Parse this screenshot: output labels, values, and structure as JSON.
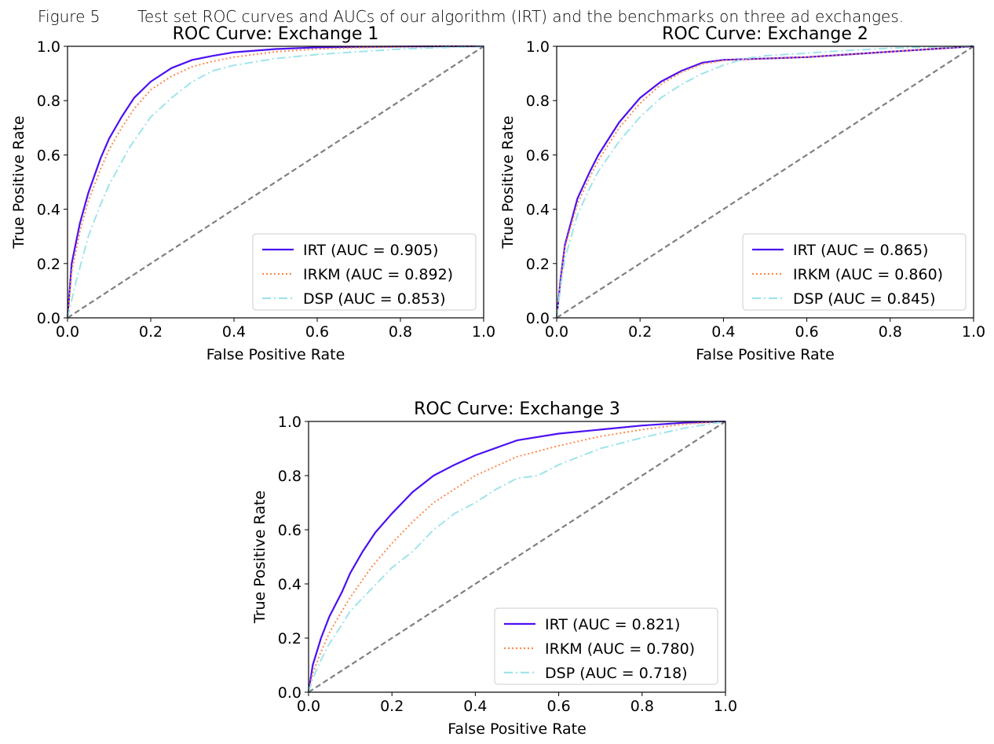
{
  "caption": {
    "label": "Figure 5",
    "text": "Test set ROC curves and AUCs of our algorithm (IRT) and the benchmarks on three ad exchanges."
  },
  "styles": {
    "irt_color": "#4b10f2",
    "irkm_color": "#ff8a4d",
    "dsp_color": "#9fe4ea",
    "diagonal_color": "#808080"
  },
  "chart_data": [
    {
      "type": "line",
      "title": "ROC Curve: Exchange 1",
      "xlabel": "False Positive Rate",
      "ylabel": "True Positive Rate",
      "xlim": [
        0,
        1
      ],
      "ylim": [
        0,
        1
      ],
      "xticks": [
        "0.0",
        "0.2",
        "0.4",
        "0.6",
        "0.8",
        "1.0"
      ],
      "yticks": [
        "0.0",
        "0.2",
        "0.4",
        "0.6",
        "0.8",
        "1.0"
      ],
      "legend_position": "lower-right",
      "grid": false,
      "series": [
        {
          "name": "IRT (AUC = 0.905)",
          "style": "solid",
          "x": [
            0,
            0.01,
            0.03,
            0.05,
            0.08,
            0.1,
            0.13,
            0.16,
            0.2,
            0.25,
            0.3,
            0.35,
            0.4,
            0.5,
            0.6,
            0.7,
            0.8,
            0.9,
            1.0
          ],
          "y": [
            0,
            0.2,
            0.35,
            0.46,
            0.59,
            0.66,
            0.74,
            0.81,
            0.87,
            0.92,
            0.95,
            0.965,
            0.978,
            0.99,
            0.996,
            0.998,
            0.999,
            1.0,
            1.0
          ]
        },
        {
          "name": "IRKM (AUC = 0.892)",
          "style": "dotted",
          "x": [
            0,
            0.01,
            0.03,
            0.05,
            0.08,
            0.1,
            0.13,
            0.16,
            0.2,
            0.25,
            0.3,
            0.35,
            0.4,
            0.5,
            0.6,
            0.7,
            0.8,
            0.9,
            1.0
          ],
          "y": [
            0,
            0.17,
            0.32,
            0.43,
            0.55,
            0.62,
            0.7,
            0.77,
            0.84,
            0.89,
            0.925,
            0.945,
            0.96,
            0.98,
            0.99,
            0.995,
            0.998,
            1.0,
            1.0
          ]
        },
        {
          "name": "DSP (AUC = 0.853)",
          "style": "dashdot",
          "x": [
            0,
            0.02,
            0.05,
            0.08,
            0.1,
            0.15,
            0.2,
            0.25,
            0.3,
            0.35,
            0.4,
            0.5,
            0.6,
            0.7,
            0.8,
            0.9,
            1.0
          ],
          "y": [
            0,
            0.13,
            0.3,
            0.42,
            0.49,
            0.63,
            0.74,
            0.81,
            0.87,
            0.91,
            0.93,
            0.955,
            0.97,
            0.98,
            0.99,
            0.995,
            1.0
          ]
        }
      ]
    },
    {
      "type": "line",
      "title": "ROC Curve: Exchange 2",
      "xlabel": "False Positive Rate",
      "ylabel": "True Positive Rate",
      "xlim": [
        0,
        1
      ],
      "ylim": [
        0,
        1
      ],
      "xticks": [
        "0.0",
        "0.2",
        "0.4",
        "0.6",
        "0.8",
        "1.0"
      ],
      "yticks": [
        "0.0",
        "0.2",
        "0.4",
        "0.6",
        "0.8",
        "1.0"
      ],
      "legend_position": "lower-right",
      "grid": false,
      "series": [
        {
          "name": "IRT (AUC = 0.865)",
          "style": "solid",
          "x": [
            0,
            0.01,
            0.02,
            0.05,
            0.08,
            0.1,
            0.15,
            0.2,
            0.25,
            0.3,
            0.35,
            0.4,
            0.5,
            0.6,
            0.7,
            0.8,
            0.9,
            1.0
          ],
          "y": [
            0,
            0.15,
            0.27,
            0.44,
            0.54,
            0.6,
            0.72,
            0.81,
            0.87,
            0.91,
            0.94,
            0.95,
            0.955,
            0.96,
            0.97,
            0.98,
            0.99,
            1.0
          ]
        },
        {
          "name": "IRKM (AUC = 0.860)",
          "style": "dotted",
          "x": [
            0,
            0.01,
            0.02,
            0.05,
            0.08,
            0.1,
            0.15,
            0.2,
            0.25,
            0.3,
            0.35,
            0.4,
            0.5,
            0.6,
            0.7,
            0.8,
            0.9,
            1.0
          ],
          "y": [
            0,
            0.14,
            0.26,
            0.42,
            0.52,
            0.58,
            0.7,
            0.79,
            0.86,
            0.905,
            0.935,
            0.948,
            0.955,
            0.96,
            0.97,
            0.98,
            0.99,
            1.0
          ]
        },
        {
          "name": "DSP (AUC = 0.845)",
          "style": "dashdot",
          "x": [
            0,
            0.01,
            0.02,
            0.05,
            0.08,
            0.1,
            0.15,
            0.2,
            0.25,
            0.3,
            0.35,
            0.4,
            0.45,
            0.5,
            0.6,
            0.7,
            0.8,
            0.9,
            1.0
          ],
          "y": [
            0,
            0.12,
            0.22,
            0.38,
            0.48,
            0.54,
            0.65,
            0.74,
            0.81,
            0.86,
            0.9,
            0.93,
            0.955,
            0.965,
            0.975,
            0.985,
            0.993,
            0.998,
            1.0
          ]
        }
      ]
    },
    {
      "type": "line",
      "title": "ROC Curve: Exchange 3",
      "xlabel": "False Positive Rate",
      "ylabel": "True Positive Rate",
      "xlim": [
        0,
        1
      ],
      "ylim": [
        0,
        1
      ],
      "xticks": [
        "0.0",
        "0.2",
        "0.4",
        "0.6",
        "0.8",
        "1.0"
      ],
      "yticks": [
        "0.0",
        "0.2",
        "0.4",
        "0.6",
        "0.8",
        "1.0"
      ],
      "legend_position": "lower-right",
      "grid": false,
      "series": [
        {
          "name": "IRT (AUC = 0.821)",
          "style": "solid",
          "x": [
            0,
            0.01,
            0.03,
            0.05,
            0.08,
            0.1,
            0.13,
            0.16,
            0.2,
            0.25,
            0.3,
            0.35,
            0.4,
            0.5,
            0.6,
            0.7,
            0.8,
            0.9,
            1.0
          ],
          "y": [
            0,
            0.1,
            0.2,
            0.28,
            0.37,
            0.44,
            0.52,
            0.59,
            0.66,
            0.74,
            0.8,
            0.84,
            0.875,
            0.93,
            0.955,
            0.97,
            0.985,
            0.995,
            1.0
          ]
        },
        {
          "name": "IRKM (AUC = 0.780)",
          "style": "dotted",
          "x": [
            0,
            0.01,
            0.03,
            0.05,
            0.08,
            0.1,
            0.15,
            0.2,
            0.25,
            0.3,
            0.35,
            0.4,
            0.5,
            0.6,
            0.7,
            0.8,
            0.9,
            1.0
          ],
          "y": [
            0,
            0.07,
            0.15,
            0.22,
            0.3,
            0.35,
            0.46,
            0.55,
            0.63,
            0.7,
            0.75,
            0.8,
            0.87,
            0.91,
            0.945,
            0.97,
            0.99,
            1.0
          ]
        },
        {
          "name": "DSP (AUC = 0.718)",
          "style": "dashdot",
          "x": [
            0,
            0.01,
            0.03,
            0.05,
            0.08,
            0.1,
            0.15,
            0.2,
            0.25,
            0.3,
            0.35,
            0.4,
            0.45,
            0.5,
            0.55,
            0.6,
            0.7,
            0.8,
            0.9,
            1.0
          ],
          "y": [
            0,
            0.05,
            0.12,
            0.18,
            0.25,
            0.3,
            0.38,
            0.46,
            0.52,
            0.6,
            0.66,
            0.7,
            0.75,
            0.79,
            0.8,
            0.84,
            0.9,
            0.94,
            0.975,
            1.0
          ]
        }
      ]
    }
  ]
}
